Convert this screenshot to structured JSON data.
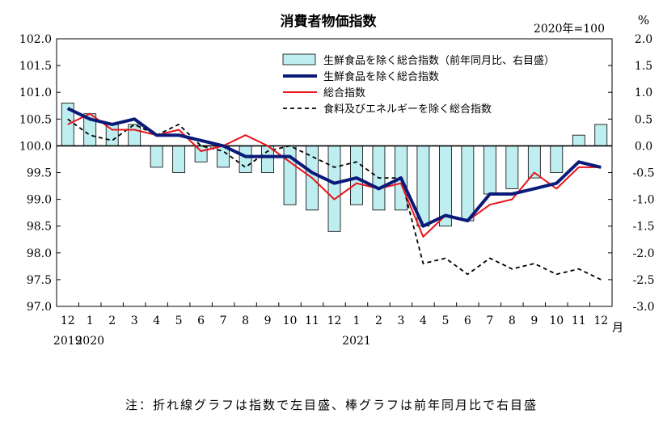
{
  "chart_data": {
    "type": "bar+line",
    "title": "消費者物価指数",
    "base_label": "2020年=100",
    "right_unit": "%",
    "month_suffix": "月",
    "note": "注：折れ線グラフは指数で左目盛、棒グラフは前年同月比で右目盛",
    "left_axis": {
      "ylim": [
        97.0,
        102.0
      ],
      "ticks": [
        "97.0",
        "97.5",
        "98.0",
        "98.5",
        "99.0",
        "99.5",
        "100.0",
        "100.5",
        "101.0",
        "101.5",
        "102.0"
      ]
    },
    "right_axis": {
      "ylim": [
        -3.0,
        2.0
      ],
      "ticks": [
        "-3.0",
        "-2.5",
        "-2.0",
        "-1.5",
        "-1.0",
        "-0.5",
        "0.0",
        "0.5",
        "1.0",
        "1.5",
        "2.0"
      ]
    },
    "categories": [
      "12",
      "1",
      "2",
      "3",
      "4",
      "5",
      "6",
      "7",
      "8",
      "9",
      "10",
      "11",
      "12",
      "1",
      "2",
      "3",
      "4",
      "5",
      "6",
      "7",
      "8",
      "9",
      "10",
      "11",
      "12"
    ],
    "year_labels": [
      {
        "index": 0,
        "text": "2019"
      },
      {
        "index": 1,
        "text": "2020"
      },
      {
        "index": 13,
        "text": "2021"
      }
    ],
    "bars": {
      "name": "生鮮食品を除く総合指数（前年同月比、右目盛）",
      "color": "#bfeef0",
      "values": [
        0.8,
        0.6,
        0.4,
        0.4,
        -0.4,
        -0.5,
        -0.3,
        -0.4,
        -0.5,
        -0.5,
        -1.1,
        -1.2,
        -1.6,
        -1.1,
        -1.2,
        -1.2,
        -1.5,
        -1.5,
        -1.4,
        -0.9,
        -0.8,
        -0.6,
        -0.5,
        0.2,
        0.4
      ]
    },
    "lines": [
      {
        "name": "生鮮食品を除く総合指数",
        "color": "#0a1a78",
        "style": "thick",
        "values": [
          100.7,
          100.5,
          100.4,
          100.5,
          100.2,
          100.2,
          100.1,
          100.0,
          99.8,
          99.8,
          99.8,
          99.5,
          99.3,
          99.4,
          99.2,
          99.4,
          98.5,
          98.7,
          98.6,
          99.1,
          99.1,
          99.2,
          99.3,
          99.7,
          99.6
        ]
      },
      {
        "name": "総合指数",
        "color": "#e8141a",
        "style": "solid",
        "values": [
          100.4,
          100.6,
          100.3,
          100.3,
          100.2,
          100.3,
          99.9,
          100.0,
          100.2,
          100.0,
          99.7,
          99.4,
          99.0,
          99.3,
          99.2,
          99.3,
          98.3,
          98.7,
          98.6,
          98.9,
          99.0,
          99.5,
          99.2,
          99.6,
          99.6
        ]
      },
      {
        "name": "食料及びエネルギーを除く総合指数",
        "color": "#000000",
        "style": "dashed",
        "values": [
          100.5,
          100.2,
          100.1,
          100.4,
          100.2,
          100.4,
          100.0,
          99.9,
          99.6,
          99.9,
          100.0,
          99.8,
          99.6,
          99.7,
          99.4,
          99.4,
          97.8,
          97.9,
          97.6,
          97.9,
          97.7,
          97.8,
          97.6,
          97.7,
          97.5
        ]
      }
    ]
  }
}
